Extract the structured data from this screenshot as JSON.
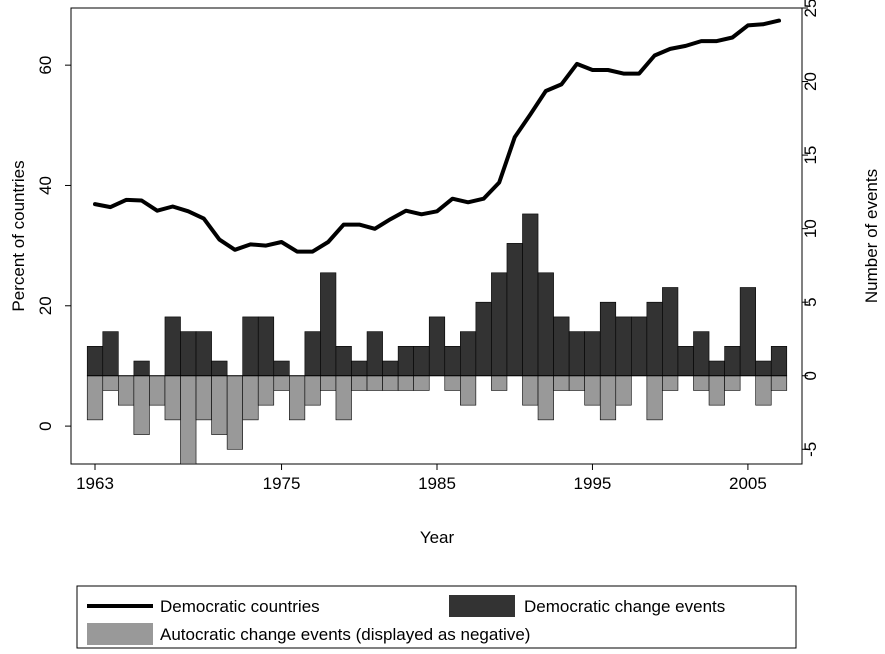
{
  "chart_data": {
    "type": "bar+line",
    "xlabel": "Year",
    "ylabel_left": "Percent of countries",
    "ylabel_right": "Number of events",
    "x_ticks": [
      1963,
      1975,
      1985,
      1995,
      2005
    ],
    "x_range": [
      1963,
      2007
    ],
    "ylim_left": [
      -6.3,
      69.5
    ],
    "ylim_right": [
      -6,
      25
    ],
    "left_ticks": [
      0,
      20,
      40,
      60
    ],
    "right_ticks": [
      -5,
      0,
      5,
      10,
      15,
      20,
      25
    ],
    "grid": false,
    "legend_position": "bottom",
    "series": [
      {
        "name": "Democratic countries",
        "type": "line",
        "axis": "left",
        "color": "#000000",
        "x": [
          1963,
          1964,
          1965,
          1966,
          1967,
          1968,
          1969,
          1970,
          1971,
          1972,
          1973,
          1974,
          1975,
          1976,
          1977,
          1978,
          1979,
          1980,
          1981,
          1982,
          1983,
          1984,
          1985,
          1986,
          1987,
          1988,
          1989,
          1990,
          1991,
          1992,
          1993,
          1994,
          1995,
          1996,
          1997,
          1998,
          1999,
          2000,
          2001,
          2002,
          2003,
          2004,
          2005,
          2006,
          2007
        ],
        "values": [
          36.9,
          36.4,
          37.6,
          37.5,
          35.8,
          36.5,
          35.7,
          34.5,
          31.0,
          29.3,
          30.2,
          30.0,
          30.6,
          29.0,
          29.0,
          30.6,
          33.5,
          33.5,
          32.8,
          34.4,
          35.8,
          35.2,
          35.7,
          37.8,
          37.2,
          37.8,
          40.5,
          48.0,
          51.8,
          55.7,
          56.8,
          60.2,
          59.2,
          59.2,
          58.6,
          58.6,
          61.6,
          62.7,
          63.2,
          64.0,
          64.0,
          64.6,
          66.6,
          66.8,
          67.4
        ]
      },
      {
        "name": "Democratic change events",
        "type": "bar",
        "axis": "right",
        "color": "#333333",
        "x": [
          1963,
          1964,
          1965,
          1966,
          1967,
          1968,
          1969,
          1970,
          1971,
          1972,
          1973,
          1974,
          1975,
          1976,
          1977,
          1978,
          1979,
          1980,
          1981,
          1982,
          1983,
          1984,
          1985,
          1986,
          1987,
          1988,
          1989,
          1990,
          1991,
          1992,
          1993,
          1994,
          1995,
          1996,
          1997,
          1998,
          1999,
          2000,
          2001,
          2002,
          2003,
          2004,
          2005,
          2006,
          2007
        ],
        "values": [
          2,
          3,
          0,
          1,
          0,
          4,
          3,
          3,
          1,
          0,
          4,
          4,
          1,
          0,
          3,
          7,
          2,
          1,
          3,
          1,
          2,
          2,
          4,
          2,
          3,
          5,
          7,
          9,
          11,
          7,
          4,
          3,
          3,
          5,
          4,
          4,
          5,
          6,
          2,
          3,
          1,
          2,
          6,
          1,
          2
        ]
      },
      {
        "name": "Autocratic change events (displayed as negative)",
        "type": "bar",
        "axis": "right",
        "color": "#999999",
        "x": [
          1963,
          1964,
          1965,
          1966,
          1967,
          1968,
          1969,
          1970,
          1971,
          1972,
          1973,
          1974,
          1975,
          1976,
          1977,
          1978,
          1979,
          1980,
          1981,
          1982,
          1983,
          1984,
          1985,
          1986,
          1987,
          1988,
          1989,
          1990,
          1991,
          1992,
          1993,
          1994,
          1995,
          1996,
          1997,
          1998,
          1999,
          2000,
          2001,
          2002,
          2003,
          2004,
          2005,
          2006,
          2007
        ],
        "values": [
          -3,
          -1,
          -2,
          -4,
          -2,
          -3,
          -6,
          -3,
          -4,
          -5,
          -3,
          -2,
          -1,
          -3,
          -2,
          -1,
          -3,
          -1,
          -1,
          -1,
          -1,
          -1,
          0,
          -1,
          -2,
          0,
          -1,
          0,
          -2,
          -3,
          -1,
          -1,
          -2,
          -3,
          -2,
          0,
          -3,
          -1,
          0,
          -1,
          -2,
          -1,
          0,
          -2,
          -1
        ]
      }
    ]
  }
}
